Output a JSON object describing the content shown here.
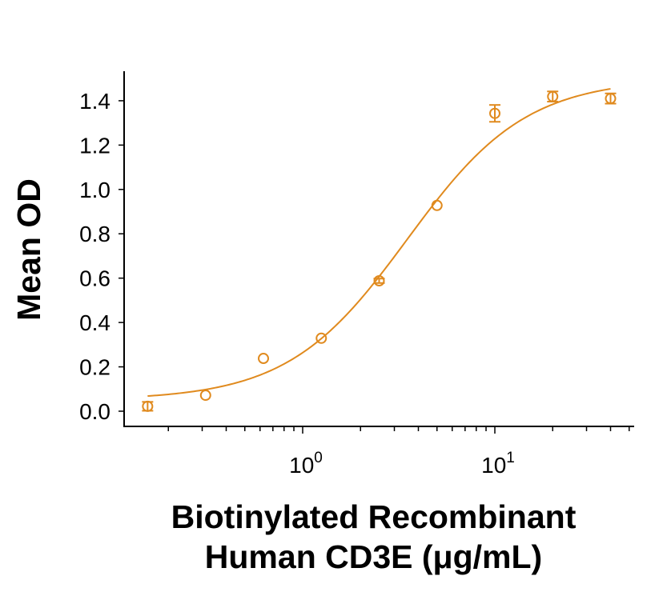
{
  "chart_data": {
    "type": "scatter",
    "title": "",
    "xlabel_lines": [
      "Biotinylated Recombinant",
      "Human CD3E (μg/mL)"
    ],
    "ylabel": "Mean OD",
    "xscale": "log",
    "xlim": [
      0.118,
      53
    ],
    "ylim": [
      -0.07,
      1.52
    ],
    "x_ticks": [
      {
        "base": "10",
        "exp": "0",
        "value": 1
      },
      {
        "base": "10",
        "exp": "1",
        "value": 10
      }
    ],
    "y_ticks": [
      0.0,
      0.2,
      0.4,
      0.6,
      0.8,
      1.0,
      1.2,
      1.4
    ],
    "y_tick_labels": [
      "0.0",
      "0.2",
      "0.4",
      "0.6",
      "0.8",
      "1.0",
      "1.2",
      "1.4"
    ],
    "grid": false,
    "legend": "none",
    "color": "#E08A1E",
    "series": [
      {
        "name": "Mean OD",
        "marker": "open-circle",
        "x": [
          0.156,
          0.3125,
          0.625,
          1.25,
          2.5,
          5,
          10,
          20,
          40
        ],
        "y": [
          0.022,
          0.072,
          0.238,
          0.329,
          0.588,
          0.928,
          1.343,
          1.419,
          1.41
        ],
        "error": [
          0.02,
          0.0,
          0.0,
          0.0,
          0.01,
          0.0,
          0.038,
          0.023,
          0.023
        ]
      }
    ],
    "fit": {
      "model": "4PL",
      "bottom": 0.05,
      "top": 1.5,
      "ec50": 3.5,
      "hill": 1.4,
      "x_range": [
        0.156,
        40
      ]
    }
  }
}
